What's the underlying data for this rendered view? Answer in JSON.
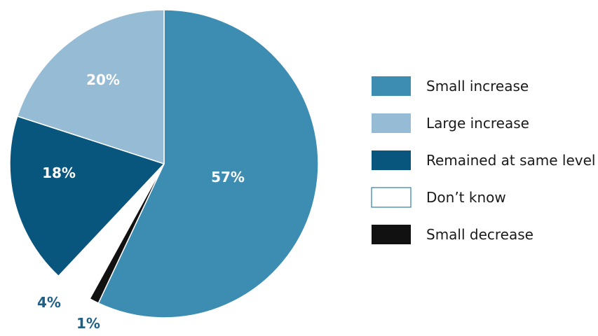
{
  "chart_data": {
    "type": "pie",
    "title": "",
    "slices": [
      {
        "label": "Small increase",
        "value": 57,
        "value_label": "57%",
        "color": "#3d8db3",
        "label_color": "#ffffff"
      },
      {
        "label": "Small decrease",
        "value": 1,
        "value_label": "1%",
        "color": "#111111",
        "label_color": "#1f5f86"
      },
      {
        "label": "Don’t know",
        "value": 4,
        "value_label": "4%",
        "color": "#ffffff",
        "label_color": "#1f5f86"
      },
      {
        "label": "Remained at same level",
        "value": 18,
        "value_label": "18%",
        "color": "#08557e",
        "label_color": "#ffffff"
      },
      {
        "label": "Large increase",
        "value": 20,
        "value_label": "20%",
        "color": "#96bcd5",
        "label_color": "#ffffff"
      }
    ],
    "start_angle_deg": 0,
    "direction": "clockwise",
    "slice_stroke": "#ffffff",
    "legend": {
      "position": "right",
      "entries": [
        {
          "label": "Small increase",
          "color": "#3d8db3"
        },
        {
          "label": "Large increase",
          "color": "#96bcd5"
        },
        {
          "label": "Remained at same level",
          "color": "#08557e"
        },
        {
          "label": "Don’t know",
          "color": "#ffffff",
          "border": "#2f7fa8"
        },
        {
          "label": "Small decrease",
          "color": "#111111"
        }
      ]
    }
  }
}
